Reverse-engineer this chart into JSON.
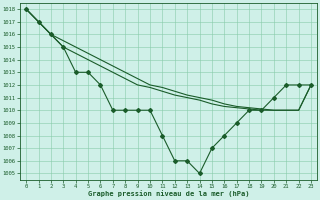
{
  "bg_color": "#cff0e8",
  "grid_color": "#88ccaa",
  "line_color": "#1a5c2a",
  "title": "Graphe pression niveau de la mer (hPa)",
  "xlim": [
    -0.5,
    23.5
  ],
  "ylim": [
    1004.5,
    1018.5
  ],
  "xticks": [
    0,
    1,
    2,
    3,
    4,
    5,
    6,
    7,
    8,
    9,
    10,
    11,
    12,
    13,
    14,
    15,
    16,
    17,
    18,
    19,
    20,
    21,
    22,
    23
  ],
  "yticks": [
    1005,
    1006,
    1007,
    1008,
    1009,
    1010,
    1011,
    1012,
    1013,
    1014,
    1015,
    1016,
    1017,
    1018
  ],
  "series": [
    {
      "x": [
        0,
        1,
        2,
        3,
        4,
        5,
        6,
        7,
        8,
        9,
        10,
        11,
        12,
        13,
        14,
        15,
        16,
        17,
        18,
        19,
        20,
        21,
        22,
        23
      ],
      "y": [
        1018,
        1017,
        1016,
        1015.5,
        1015,
        1014.5,
        1014,
        1013.5,
        1013,
        1012.5,
        1012,
        1011.8,
        1011.5,
        1011.2,
        1011,
        1010.8,
        1010.5,
        1010.3,
        1010.2,
        1010.1,
        1010,
        1010,
        1010,
        1012
      ],
      "has_markers": false
    },
    {
      "x": [
        0,
        1,
        2,
        3,
        4,
        5,
        6,
        7,
        8,
        9,
        10,
        11,
        12,
        13,
        14,
        15,
        16,
        17,
        18,
        19,
        20,
        21,
        22,
        23
      ],
      "y": [
        1018,
        1017,
        1016,
        1015,
        1014.5,
        1014,
        1013.5,
        1013,
        1012.5,
        1012,
        1011.8,
        1011.5,
        1011.2,
        1011,
        1010.8,
        1010.5,
        1010.3,
        1010.2,
        1010.1,
        1010,
        1010,
        1010,
        1010,
        1012
      ],
      "has_markers": false
    },
    {
      "x": [
        0,
        1,
        2,
        3,
        4,
        5,
        6,
        7,
        8,
        9,
        10,
        11,
        12,
        13,
        14,
        15,
        16,
        17,
        18,
        19,
        20,
        21,
        22,
        23
      ],
      "y": [
        1018,
        1017,
        1016,
        1015,
        1013,
        1013,
        1012,
        1010,
        1010,
        1010,
        1010,
        1008,
        1006,
        1006,
        1005,
        1007,
        1008,
        1009,
        1010,
        1010,
        1011,
        1012,
        1012,
        1012
      ],
      "has_markers": true
    }
  ],
  "marker": "D",
  "markersize": 2.0,
  "linewidth": 0.8
}
